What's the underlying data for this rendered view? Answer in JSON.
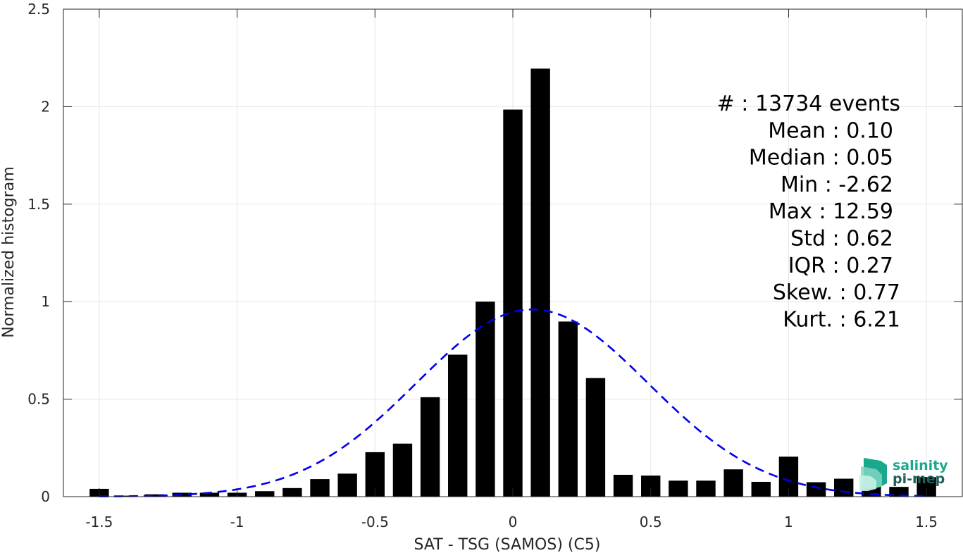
{
  "chart_data": {
    "type": "bar",
    "xlabel": "SAT - TSG (SAMOS) (C5)",
    "ylabel": "Normalized histogram",
    "xlim": [
      -1.63,
      1.63
    ],
    "ylim": [
      0,
      2.5
    ],
    "grid": true,
    "x_ticks": [
      -1.5,
      -1,
      -0.5,
      0,
      0.5,
      1,
      1.5
    ],
    "x_tick_labels": [
      "-1.5",
      "-1",
      "-0.5",
      "0",
      "0.5",
      "1",
      "1.5"
    ],
    "y_ticks": [
      0,
      0.5,
      1,
      1.5,
      2,
      2.5
    ],
    "y_tick_labels": [
      "0",
      "0.5",
      "1",
      "1.5",
      "2",
      "2.5"
    ],
    "bar_width": 0.07,
    "bar_color": "#000000",
    "x": [
      -1.5,
      -1.4,
      -1.3,
      -1.2,
      -1.1,
      -1.0,
      -0.9,
      -0.8,
      -0.7,
      -0.6,
      -0.5,
      -0.4,
      -0.3,
      -0.2,
      -0.1,
      0.0,
      0.1,
      0.2,
      0.3,
      0.4,
      0.5,
      0.6,
      0.7,
      0.8,
      0.9,
      1.0,
      1.1,
      1.2,
      1.3,
      1.4,
      1.5
    ],
    "values": [
      0.04,
      0.005,
      0.012,
      0.02,
      0.02,
      0.02,
      0.028,
      0.044,
      0.09,
      0.118,
      0.228,
      0.272,
      0.51,
      0.728,
      1.0,
      1.985,
      2.195,
      0.898,
      0.608,
      0.112,
      0.108,
      0.082,
      0.082,
      0.14,
      0.076,
      0.205,
      0.074,
      0.092,
      0.055,
      0.05,
      0.1
    ],
    "fit": {
      "type": "normal",
      "mean": 0.07,
      "std": 0.42,
      "peak": 0.96,
      "color": "#0000ee",
      "style": "dashed"
    },
    "stats": [
      "#  : 13734 events",
      "Mean : 0.10",
      "Median : 0.05",
      "Min : -2.62",
      "Max : 12.59",
      "Std : 0.62",
      "IQR : 0.27",
      "Skew. : 0.77",
      "Kurt. : 6.21"
    ]
  },
  "logo": {
    "line1": "salinity",
    "line2": "pi-mep",
    "color": "#1aa88c"
  }
}
